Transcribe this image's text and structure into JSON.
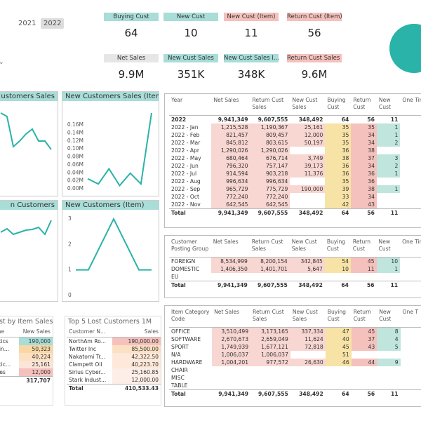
{
  "years": [
    "2021",
    "2022"
  ],
  "kpis": [
    {
      "label": "Buying Cust",
      "value": "64",
      "color": "#a8ddd8"
    },
    {
      "label": "New Cust",
      "value": "10",
      "color": "#a8ddd8"
    },
    {
      "label": "New Cust (Item)",
      "value": "11",
      "color": "#f5c1bd"
    },
    {
      "label": "Return Cust (Item)",
      "value": "56",
      "color": "#f5c1bd"
    },
    {
      "label": "Net Sales",
      "value": "9.9M",
      "color": "#e6e6e6"
    },
    {
      "label": "New Cust Sales",
      "value": "351K",
      "color": "#a8ddd8"
    },
    {
      "label": "New Cust Sales I...",
      "value": "348K",
      "color": "#a8ddd8"
    },
    {
      "label": "Return Cust Sales ...",
      "value": "9.6M",
      "color": "#f5c1bd"
    }
  ],
  "charts": [
    {
      "type": "line",
      "title": "ustomers Sales",
      "values": [
        1.8,
        1.7,
        0.84,
        1.0,
        1.2,
        1.34,
        1.0,
        1.0,
        0.76
      ],
      "ylim": [
        0,
        2
      ],
      "color": "#2ab3a8"
    },
    {
      "type": "line",
      "title": "New Customers Sales (Item)",
      "values": [
        0.025,
        0.012,
        0.05,
        0.008,
        0.039,
        0.012,
        0.19
      ],
      "ylim": [
        0,
        0.19
      ],
      "color": "#2ab3a8",
      "yticks": [
        {
          "value": 0,
          "label": "0.00M"
        },
        {
          "value": 0.02,
          "label": "0.02M"
        },
        {
          "value": 0.04,
          "label": "0.04M"
        },
        {
          "value": 0.06,
          "label": "0.06M"
        },
        {
          "value": 0.08,
          "label": "0.08M"
        },
        {
          "value": 0.1,
          "label": "0.10M"
        },
        {
          "value": 0.12,
          "label": "0.12M"
        },
        {
          "value": 0.14,
          "label": "0.14M"
        },
        {
          "value": 0.16,
          "label": "0.16M"
        }
      ]
    },
    {
      "type": "line",
      "title": "n Customers",
      "values": [
        1.5,
        1.6,
        1.44,
        1.5,
        1.56,
        1.58,
        1.64,
        1.44,
        1.84
      ],
      "ylim": [
        0,
        2
      ],
      "color": "#2ab3a8"
    },
    {
      "type": "line",
      "title": "New Customers (Item)",
      "values": [
        1,
        1,
        2,
        3,
        2,
        1,
        1
      ],
      "ylim": [
        0,
        3
      ],
      "yticks": [
        0,
        1,
        2,
        3
      ],
      "color": "#2ab3a8"
    }
  ],
  "small_tables": [
    {
      "title": "ust by Item Sales",
      "columns": [
        "me",
        "New Sales"
      ],
      "rows": [
        [
          "otics",
          "190,000"
        ],
        [
          "din...",
          "50,323"
        ],
        [
          null,
          "40,224"
        ],
        [
          "etic...",
          "25,161"
        ],
        [
          "ries",
          "12,000"
        ]
      ],
      "total": [
        null,
        "317,707"
      ]
    },
    {
      "title": "Top 5 Lost Customers 1M",
      "columns": [
        "Customer N...",
        "Sales"
      ],
      "rows": [
        [
          "NorthAm Ro...",
          "190,000.00"
        ],
        [
          "Twitter Inc",
          "85,500.00"
        ],
        [
          "Nakatomi Tr...",
          "42,322.50"
        ],
        [
          "Clampett Oil",
          "40,223.70"
        ],
        [
          "Sirius Cyber...",
          "25,160.85"
        ],
        [
          "Stark Indust...",
          "12,000.00"
        ]
      ],
      "total": [
        "Total",
        "410,533.43"
      ]
    }
  ],
  "tables": [
    {
      "columns": [
        "Year",
        "Net Sales",
        "Return Cust Sales",
        "New Cust Sales",
        "Buying Cust",
        "Return Cust",
        "New Cust",
        "One Tim"
      ],
      "rows": [
        [
          "2022",
          "9,941,349",
          "9,607,555",
          "348,492",
          "64",
          "56",
          "11",
          null
        ],
        [
          "2022 - Jan",
          "1,215,528",
          "1,190,367",
          "25,161",
          "35",
          "35",
          "1",
          null
        ],
        [
          "2022 - Feb",
          "821,457",
          "809,457",
          "12,000",
          "35",
          "34",
          "1",
          null
        ],
        [
          "2022 - Mar",
          "845,812",
          "803,615",
          "50,197",
          "35",
          "34",
          "2",
          null
        ],
        [
          "2022 - Apr",
          "1,290,026",
          "1,290,026",
          null,
          "36",
          "38",
          null,
          null
        ],
        [
          "2022 - May",
          "680,464",
          "676,714",
          "3,749",
          "38",
          "37",
          "3",
          null
        ],
        [
          "2022 - Jun",
          "796,320",
          "757,147",
          "39,173",
          "36",
          "34",
          "2",
          null
        ],
        [
          "2022 - Jul",
          "914,594",
          "903,218",
          "11,376",
          "36",
          "36",
          "1",
          null
        ],
        [
          "2022 - Aug",
          "996,634",
          "996,634",
          null,
          "35",
          "36",
          null,
          null
        ],
        [
          "2022 - Sep",
          "965,729",
          "775,729",
          "190,000",
          "39",
          "38",
          "1",
          null
        ],
        [
          "2022 - Oct",
          "772,240",
          "772,240",
          null,
          "33",
          "34",
          null,
          null
        ],
        [
          "2022 - Nov",
          "642,545",
          "642,545",
          null,
          "42",
          "43",
          null,
          null
        ]
      ],
      "total": [
        "Total",
        "9,941,349",
        "9,607,555",
        "348,492",
        "64",
        "56",
        "11",
        null
      ]
    },
    {
      "columns": [
        "Customer Posting Group",
        "Net Sales",
        "Return Cust Sales",
        "New Cust Sales",
        "Buying Cust",
        "Return Cust",
        "New Cust",
        "One Tim"
      ],
      "rows": [
        [
          "FOREIGN",
          "8,534,999",
          "8,200,154",
          "342,845",
          "54",
          "45",
          "10",
          null
        ],
        [
          "DOMESTIC",
          "1,406,350",
          "1,401,701",
          "5,647",
          "10",
          "11",
          "1",
          null
        ],
        [
          "EU",
          null,
          null,
          null,
          null,
          null,
          null,
          null
        ]
      ],
      "total": [
        "Total",
        "9,941,349",
        "9,607,555",
        "348,492",
        "64",
        "56",
        "11",
        null
      ]
    },
    {
      "columns": [
        "Item Category Code",
        "Net Sales",
        "Return Cust Sales",
        "New Cust Sales",
        "Buying Cust",
        "Return Cust",
        "New Cust",
        "One T"
      ],
      "rows": [
        [
          "OFFICE",
          "3,510,499",
          "3,173,165",
          "337,334",
          "47",
          "45",
          "8",
          null
        ],
        [
          "SOFTWARE",
          "2,670,673",
          "2,659,049",
          "11,624",
          "40",
          "37",
          "4",
          null
        ],
        [
          "SPORT",
          "1,749,939",
          "1,677,121",
          "72,818",
          "45",
          "43",
          "5",
          null
        ],
        [
          "N/A",
          "1,006,037",
          "1,006,037",
          null,
          "51",
          null,
          null,
          null
        ],
        [
          "HARDWARE",
          "1,004,201",
          "977,572",
          "26,630",
          "46",
          "44",
          "9",
          null
        ],
        [
          "CHAIR",
          null,
          null,
          null,
          null,
          null,
          null,
          null
        ],
        [
          "MISC",
          null,
          null,
          null,
          null,
          null,
          null,
          null
        ],
        [
          "TABLE",
          null,
          null,
          null,
          null,
          null,
          null,
          null
        ]
      ],
      "total": [
        "Total",
        "9,941,349",
        "9,607,555",
        "348,492",
        "64",
        "56",
        "11",
        null
      ]
    }
  ]
}
